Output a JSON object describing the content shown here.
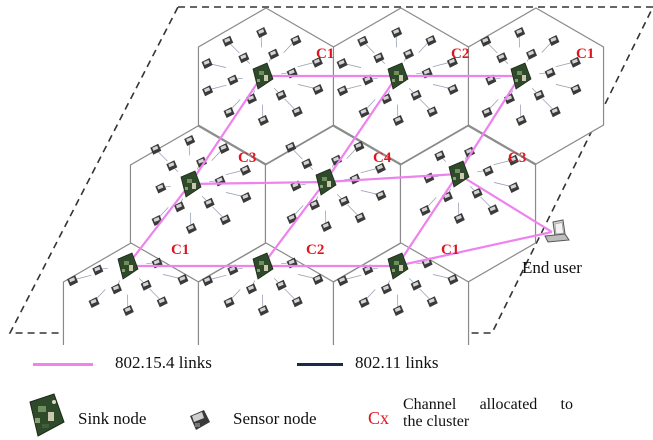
{
  "diagram": {
    "cluster_channels": [
      "C1",
      "C2",
      "C1",
      "C3",
      "C4",
      "C3",
      "C1",
      "C2",
      "C1"
    ],
    "end_user_label": "End user",
    "colors": {
      "link_802154": "#ee82ee",
      "link_80211": "#1a2a4a",
      "channel_label": "#e0141e",
      "cell_border": "#8a8a8a",
      "boundary": "#333333"
    }
  },
  "legend": {
    "link_802154_label": "802.15.4 links",
    "link_80211_label": "802.11 links",
    "sink_label": "Sink node",
    "sensor_label": "Sensor node",
    "channel_symbol": "Cx",
    "channel_desc_line1": "Channel allocated to",
    "channel_desc_line2": "the cluster",
    "sink_icon": "sink-node-icon",
    "sensor_icon": "sensor-node-icon"
  }
}
